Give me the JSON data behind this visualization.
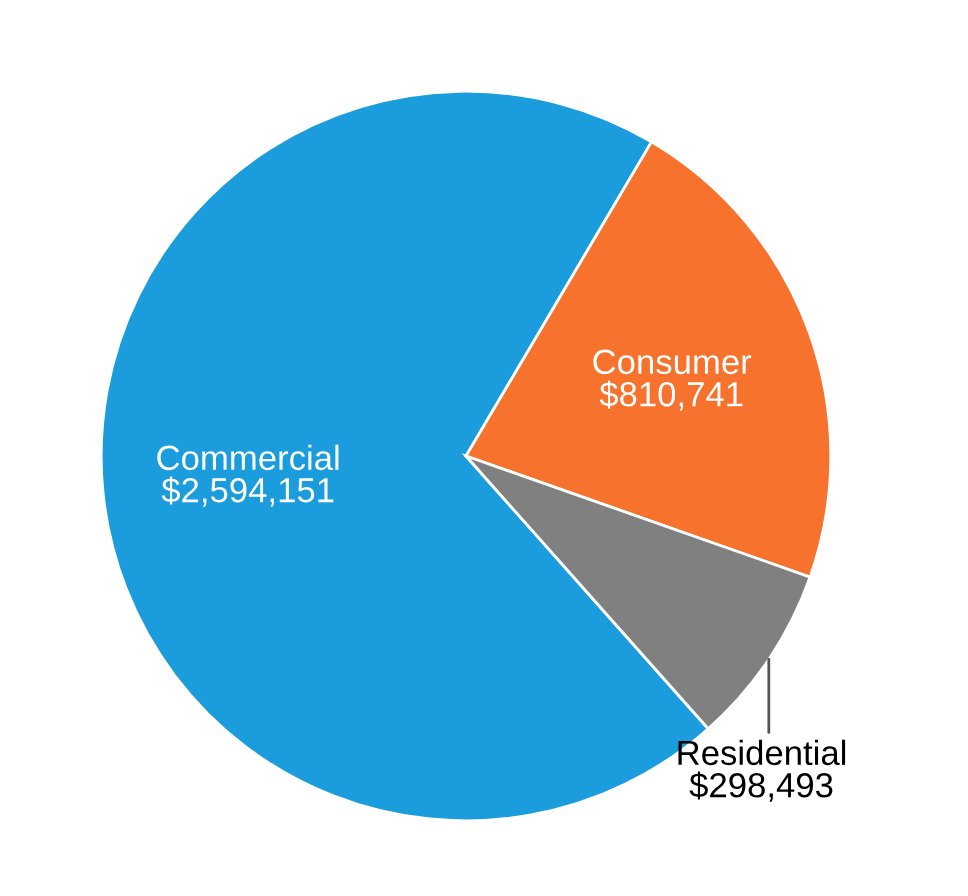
{
  "chart_data": {
    "type": "pie",
    "categories": [
      "Commercial",
      "Consumer",
      "Residential"
    ],
    "values": [
      2594151,
      810741,
      298493
    ],
    "value_labels": [
      "$2,594,151",
      "$810,741",
      "$298,493"
    ],
    "colors": [
      "#1b9ddd",
      "#f7722c",
      "#808080"
    ]
  }
}
